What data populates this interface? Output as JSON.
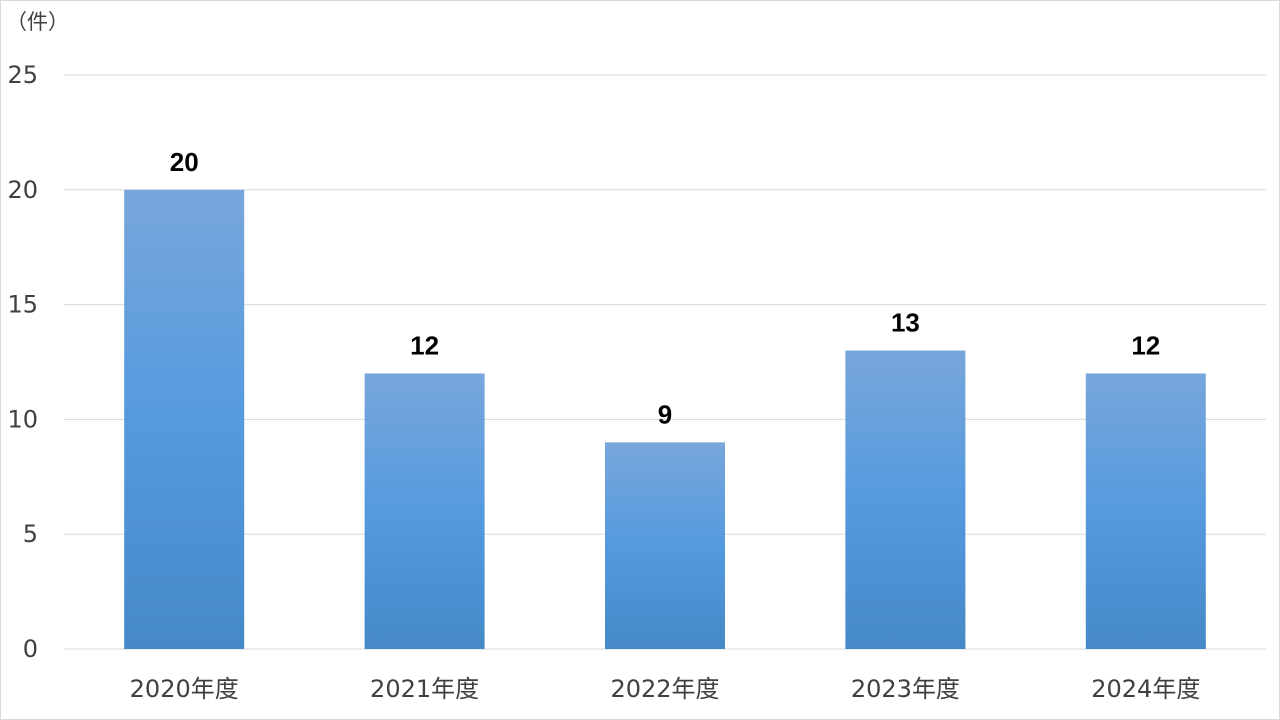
{
  "chart_data": {
    "type": "bar",
    "unit_label": "（件）",
    "categories": [
      "2020年度",
      "2021年度",
      "2022年度",
      "2023年度",
      "2024年度"
    ],
    "values": [
      20,
      12,
      9,
      13,
      12
    ],
    "data_labels": [
      "20",
      "12",
      "9",
      "13",
      "12"
    ],
    "ylim": [
      0,
      25
    ],
    "yticks": [
      0,
      5,
      10,
      15,
      20,
      25
    ],
    "grid": true,
    "legend": "none",
    "bar_color_top": "#78a6dc",
    "bar_color_mid": "#559ade",
    "bar_color_bottom": "#4589c8",
    "title": "",
    "xlabel": "",
    "ylabel": ""
  }
}
